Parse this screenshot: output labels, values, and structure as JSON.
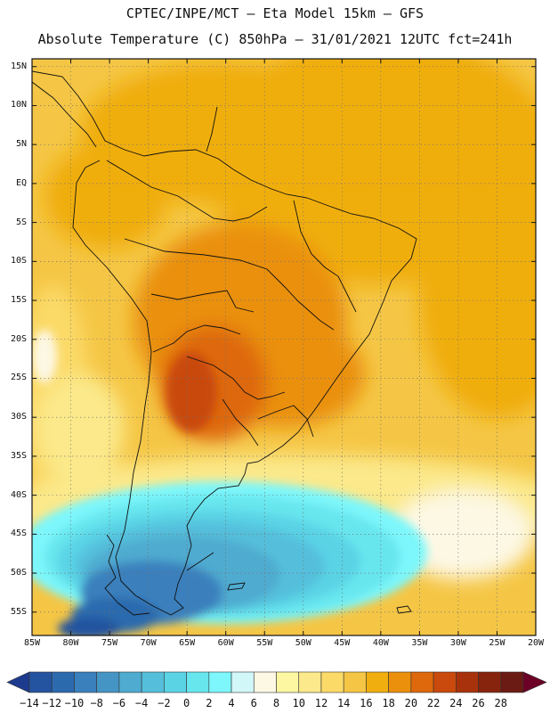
{
  "header": {
    "line1": "CPTEC/INPE/MCT –  Eta Model 15km – GFS",
    "line2": "Absolute Temperature (C) 850hPa – 31/01/2021 12UTC fct=241h"
  },
  "map": {
    "lat_labels": [
      "15N",
      "10N",
      "5N",
      "EQ",
      "5S",
      "10S",
      "15S",
      "20S",
      "25S",
      "30S",
      "35S",
      "40S",
      "45S",
      "50S",
      "55S"
    ],
    "lon_labels": [
      "85W",
      "80W",
      "75W",
      "70W",
      "65W",
      "60W",
      "55W",
      "50W",
      "45W",
      "40W",
      "35W",
      "30W",
      "25W",
      "20W"
    ],
    "lon_range_deg": [
      -85,
      -20
    ],
    "lat_range_deg": [
      -58,
      16
    ]
  },
  "colorbar": {
    "labels": [
      "−14",
      "−12",
      "−10",
      "−8",
      "−6",
      "−4",
      "−2",
      "0",
      "2",
      "4",
      "6",
      "8",
      "10",
      "12",
      "14",
      "16",
      "18",
      "20",
      "22",
      "24",
      "26",
      "28"
    ],
    "colors": [
      "#1d3b8e",
      "#24539f",
      "#2c6aae",
      "#3a80bd",
      "#4595c4",
      "#4fabd0",
      "#55bfdb",
      "#5ad3e5",
      "#67e6ee",
      "#7df7fb",
      "#d2f7f9",
      "#fdf8e4",
      "#fdf7a2",
      "#fbe98b",
      "#fbda68",
      "#f5c645",
      "#f0ae0f",
      "#ea900d",
      "#de680c",
      "#c94a0c",
      "#a8320c",
      "#87240d",
      "#6b1a14",
      "#6c0026"
    ]
  }
}
